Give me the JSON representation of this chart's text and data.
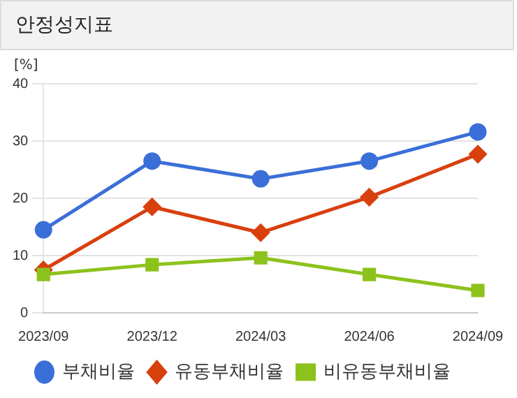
{
  "chart_data": {
    "type": "line",
    "title": "안정성지표",
    "ylabel": "[%]",
    "categories": [
      "2023/09",
      "2023/12",
      "2024/03",
      "2024/06",
      "2024/09"
    ],
    "series": [
      {
        "name": "부채비율",
        "color": "#3a6fd8",
        "marker": "circle",
        "values": [
          14.5,
          26.5,
          23.4,
          26.5,
          31.6
        ]
      },
      {
        "name": "유동부채비율",
        "color": "#d8400e",
        "marker": "diamond",
        "values": [
          7.5,
          18.5,
          14,
          20.2,
          27.7
        ]
      },
      {
        "name": "비유동부채비율",
        "color": "#8cc21c",
        "marker": "square",
        "values": [
          6.7,
          8.4,
          9.6,
          6.7,
          3.9
        ]
      }
    ],
    "ylim": [
      0,
      40
    ],
    "yticks": [
      0,
      10,
      20,
      30,
      40
    ],
    "grid": "y",
    "legend": "bottom"
  }
}
